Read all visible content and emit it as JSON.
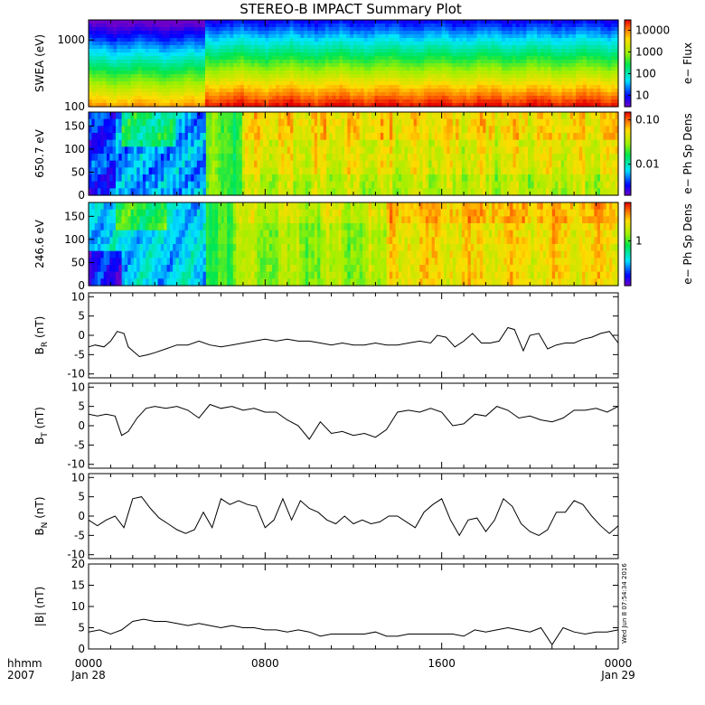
{
  "title": "STEREO-B IMPACT Summary Plot",
  "footer": {
    "time_label": "hhmm",
    "year_label": "2007",
    "stamp": "Wed Jun  8 07:54:34 2016"
  },
  "x_axis": {
    "ticks": [
      {
        "hour": 0,
        "label": "0000",
        "date": "Jan 28"
      },
      {
        "hour": 8,
        "label": "0800",
        "date": ""
      },
      {
        "hour": 16,
        "label": "1600",
        "date": ""
      },
      {
        "hour": 24,
        "label": "0000",
        "date": "Jan 29"
      }
    ]
  },
  "chart_data": [
    {
      "type": "heatmap",
      "ylabel": "SWEA (eV)",
      "y_scale": "log",
      "ylim": [
        100,
        2000
      ],
      "yticks": [
        {
          "v": 100,
          "t": "100"
        },
        {
          "v": 1000,
          "t": "1000"
        }
      ],
      "colorbar": {
        "label": "e− Flux",
        "scale": "log",
        "range": [
          3,
          30000
        ],
        "ticks": [
          {
            "v": 10,
            "t": "10"
          },
          {
            "v": 100,
            "t": "100"
          },
          {
            "v": 1000,
            "t": "1000"
          },
          {
            "v": 10000,
            "t": "10000"
          }
        ]
      },
      "colormap": "rainbow"
    },
    {
      "type": "heatmap",
      "ylabel": "650.7 eV",
      "ylim": [
        0,
        180
      ],
      "yticks": [
        {
          "v": 0,
          "t": "0"
        },
        {
          "v": 50,
          "t": "50"
        },
        {
          "v": 100,
          "t": "100"
        },
        {
          "v": 150,
          "t": "150"
        }
      ],
      "colorbar": {
        "label": "e− Ph Sp Dens",
        "scale": "log",
        "range": [
          0.002,
          0.15
        ],
        "ticks": [
          {
            "v": 0.01,
            "t": "0.01"
          },
          {
            "v": 0.1,
            "t": "0.10"
          }
        ]
      },
      "colormap": "rainbow"
    },
    {
      "type": "heatmap",
      "ylabel": "246.6 eV",
      "ylim": [
        0,
        180
      ],
      "yticks": [
        {
          "v": 0,
          "t": "0"
        },
        {
          "v": 50,
          "t": "50"
        },
        {
          "v": 100,
          "t": "100"
        },
        {
          "v": 150,
          "t": "150"
        }
      ],
      "colorbar": {
        "label": "e− Ph Sp Dens",
        "scale": "log",
        "range": [
          0.2,
          4
        ],
        "ticks": [
          {
            "v": 1,
            "t": "1"
          }
        ]
      },
      "colormap": "rainbow"
    },
    {
      "type": "line",
      "ylabel": "BR",
      "ylabel_main": "B",
      "ylabel_sub": "R",
      "ylabel_unit": " (nT)",
      "ylim": [
        -11,
        11
      ],
      "yticks": [
        -10,
        -5,
        0,
        5,
        10
      ],
      "x": [
        0,
        0.3,
        0.7,
        1.0,
        1.3,
        1.6,
        1.8,
        2.0,
        2.3,
        2.7,
        3.0,
        3.5,
        4.0,
        4.5,
        5.0,
        5.5,
        6.0,
        6.5,
        7.0,
        7.5,
        8.0,
        8.5,
        9.0,
        9.5,
        10.0,
        10.5,
        11.0,
        11.5,
        12.0,
        12.5,
        13.0,
        13.5,
        14.0,
        14.5,
        15.0,
        15.5,
        15.8,
        16.2,
        16.6,
        17.0,
        17.4,
        17.8,
        18.2,
        18.6,
        19.0,
        19.3,
        19.7,
        20.0,
        20.4,
        20.8,
        21.2,
        21.6,
        22.0,
        22.4,
        22.8,
        23.2,
        23.6,
        24.0
      ],
      "y": [
        -3,
        -2.5,
        -3,
        -1.5,
        1,
        0.5,
        -3,
        -4,
        -5.5,
        -5,
        -4.5,
        -3.5,
        -2.5,
        -2.5,
        -1.5,
        -2.5,
        -3,
        -2.5,
        -2,
        -1.5,
        -1,
        -1.5,
        -1,
        -1.5,
        -1.5,
        -2,
        -2.5,
        -2,
        -2.5,
        -2.5,
        -2,
        -2.5,
        -2.5,
        -2,
        -1.5,
        -2,
        0,
        -0.5,
        -3,
        -1.5,
        0.5,
        -2,
        -2,
        -1.5,
        2,
        1.5,
        -4,
        0,
        0.5,
        -3.5,
        -2.5,
        -2,
        -2,
        -1,
        -0.5,
        0.5,
        1,
        -2
      ],
      "grid": false
    },
    {
      "type": "line",
      "ylabel": "BT",
      "ylabel_main": "B",
      "ylabel_sub": "T",
      "ylabel_unit": " (nT)",
      "ylim": [
        -11,
        11
      ],
      "yticks": [
        -10,
        -5,
        0,
        5,
        10
      ],
      "x": [
        0,
        0.4,
        0.8,
        1.2,
        1.5,
        1.8,
        2.2,
        2.6,
        3.0,
        3.5,
        4.0,
        4.5,
        5.0,
        5.5,
        6.0,
        6.5,
        7.0,
        7.5,
        8.0,
        8.5,
        9.0,
        9.5,
        10.0,
        10.5,
        11.0,
        11.5,
        12.0,
        12.5,
        13.0,
        13.5,
        14.0,
        14.5,
        15.0,
        15.5,
        16.0,
        16.5,
        17.0,
        17.5,
        18.0,
        18.5,
        19.0,
        19.5,
        20.0,
        20.5,
        21.0,
        21.5,
        22.0,
        22.5,
        23.0,
        23.5,
        24.0
      ],
      "y": [
        3,
        2.5,
        3,
        2.5,
        -2.5,
        -1.5,
        2,
        4.5,
        5,
        4.5,
        5,
        4,
        2,
        5.5,
        4.5,
        5,
        4,
        4.5,
        3.5,
        3.5,
        1.5,
        0,
        -3.5,
        1,
        -2,
        -1.5,
        -2.5,
        -2,
        -3,
        -1,
        3.5,
        4,
        3.5,
        4.5,
        3.5,
        0,
        0.5,
        3,
        2.5,
        5,
        4,
        2,
        2.5,
        1.5,
        1,
        2,
        4,
        4,
        4.5,
        3.5,
        5
      ],
      "grid": false
    },
    {
      "type": "line",
      "ylabel": "BN",
      "ylabel_main": "B",
      "ylabel_sub": "N",
      "ylabel_unit": " (nT)",
      "ylim": [
        -11,
        11
      ],
      "yticks": [
        -10,
        -5,
        0,
        5,
        10
      ],
      "x": [
        0,
        0.4,
        0.8,
        1.2,
        1.6,
        2.0,
        2.4,
        2.8,
        3.2,
        3.6,
        4.0,
        4.4,
        4.8,
        5.2,
        5.6,
        6.0,
        6.4,
        6.8,
        7.2,
        7.6,
        8.0,
        8.4,
        8.8,
        9.2,
        9.6,
        10.0,
        10.4,
        10.8,
        11.2,
        11.6,
        12.0,
        12.4,
        12.8,
        13.2,
        13.6,
        14.0,
        14.4,
        14.8,
        15.2,
        15.6,
        16.0,
        16.4,
        16.8,
        17.2,
        17.6,
        18.0,
        18.4,
        18.8,
        19.2,
        19.6,
        20.0,
        20.4,
        20.8,
        21.2,
        21.6,
        22.0,
        22.4,
        22.8,
        23.2,
        23.6,
        24.0
      ],
      "y": [
        -1,
        -2.5,
        -1,
        0,
        -3,
        4.5,
        5,
        2,
        -0.5,
        -2,
        -3.5,
        -4.5,
        -3.5,
        1,
        -3,
        4.5,
        3,
        4,
        3,
        2.5,
        -3,
        -1,
        4.5,
        -1,
        4,
        2,
        1,
        -1,
        -2,
        0,
        -2,
        -1,
        -2,
        -1.5,
        0,
        0,
        -1.5,
        -3,
        1,
        3,
        4.5,
        -1,
        -5,
        -1,
        -0.5,
        -4,
        -1,
        4.5,
        2.5,
        -2,
        -4,
        -5,
        -3.5,
        1,
        1,
        4,
        3,
        0,
        -2.5,
        -4.5,
        -2.5
      ],
      "grid": false
    },
    {
      "type": "line",
      "ylabel": "|B| (nT)",
      "ylabel_main": "|B|",
      "ylabel_sub": "",
      "ylabel_unit": " (nT)",
      "ylim": [
        0,
        20
      ],
      "yticks": [
        0,
        5,
        10,
        15,
        20
      ],
      "x": [
        0,
        0.5,
        1.0,
        1.5,
        2.0,
        2.5,
        3.0,
        3.5,
        4.0,
        4.5,
        5.0,
        5.5,
        6.0,
        6.5,
        7.0,
        7.5,
        8.0,
        8.5,
        9.0,
        9.5,
        10.0,
        10.5,
        11.0,
        11.5,
        12.0,
        12.5,
        13.0,
        13.5,
        14.0,
        14.5,
        15.0,
        15.5,
        16.0,
        16.5,
        17.0,
        17.5,
        18.0,
        18.5,
        19.0,
        19.5,
        20.0,
        20.5,
        21.0,
        21.5,
        22.0,
        22.5,
        23.0,
        23.5,
        24.0
      ],
      "y": [
        4,
        4.5,
        3.5,
        4.5,
        6.5,
        7,
        6.5,
        6.5,
        6,
        5.5,
        6,
        5.5,
        5,
        5.5,
        5,
        5,
        4.5,
        4.5,
        4,
        4.5,
        4,
        3,
        3.5,
        3.5,
        3.5,
        3.5,
        4,
        3,
        3,
        3.5,
        3.5,
        3.5,
        3.5,
        3.5,
        3,
        4.5,
        4,
        4.5,
        5,
        4.5,
        4,
        5,
        1,
        5,
        4,
        3.5,
        4,
        4,
        4.5
      ],
      "grid": false
    }
  ]
}
